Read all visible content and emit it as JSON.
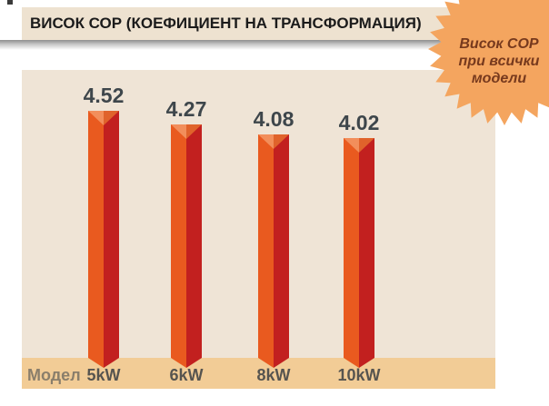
{
  "header": {
    "title": "ВИСОК СОР (КОЕФИЦИЕНТ НА ТРАНСФОРМАЦИЯ)"
  },
  "badge": {
    "lines": [
      "Висок СОР",
      "при всички",
      "модели"
    ]
  },
  "axis": {
    "row_label": "Модел"
  },
  "chart_data": {
    "type": "bar",
    "title": "ВИСОК СОР (КОЕФИЦИЕНТ НА ТРАНСФОРМАЦИЯ)",
    "categories": [
      "5kW",
      "6kW",
      "8kW",
      "10kW"
    ],
    "values": [
      4.52,
      4.27,
      4.08,
      4.02
    ],
    "data_labels": [
      "4.52",
      "4.27",
      "4.08",
      "4.02"
    ],
    "xlabel": "Модел",
    "ylabel": "",
    "ylim": [
      0,
      5.27
    ],
    "grid": false,
    "legend": false,
    "annotation": "Висок СОР при всички модели"
  },
  "colors": {
    "title_bar_bg": "#EEE2D0",
    "title_text": "#1B1B1B",
    "chart_bg": "#EFE4D6",
    "axis_strip_bg": "#F2CC96",
    "bar_left_face": "#E95A1F",
    "bar_right_face": "#C2201F",
    "bar_top_left": "#F28E5B",
    "bar_top_right": "#E0632B",
    "value_label": "#3E464B",
    "category_label": "#56544F",
    "row_label": "#8A7E6B",
    "badge_bg": "#F4A55F",
    "badge_text": "#76391D"
  }
}
